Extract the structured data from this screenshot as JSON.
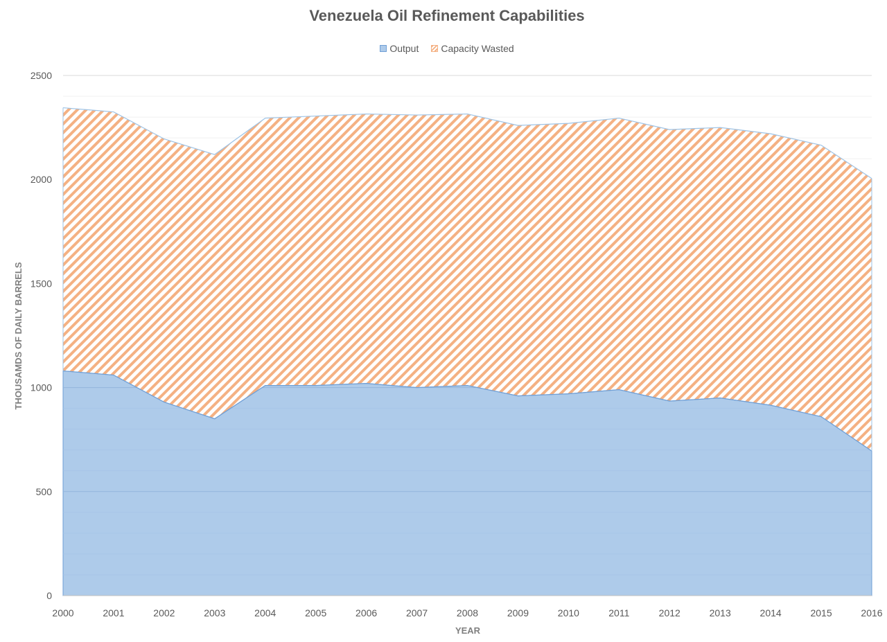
{
  "chart_data": {
    "type": "area",
    "stacked": true,
    "title": "Venezuela Oil Refinement Capabilities",
    "xlabel": "YEAR",
    "ylabel": "THOUSAMDS OF DAILY BARRELS",
    "ylim": [
      0,
      2500
    ],
    "yticks": [
      0,
      500,
      1000,
      1500,
      2000,
      2500
    ],
    "grid": true,
    "legend_position": "top",
    "x": [
      "2000",
      "2001",
      "2002",
      "2003",
      "2004",
      "2005",
      "2006",
      "2007",
      "2008",
      "2009",
      "2010",
      "2011",
      "2012",
      "2013",
      "2014",
      "2015",
      "2016"
    ],
    "series": [
      {
        "name": "Output",
        "values": [
          1080,
          1060,
          930,
          850,
          1010,
          1010,
          1020,
          1000,
          1010,
          960,
          970,
          990,
          935,
          950,
          915,
          860,
          695
        ],
        "color": "#aecbea",
        "line_color": "#6f9fd6",
        "fill": "solid"
      },
      {
        "name": "Capacity Wasted",
        "values": [
          1265,
          1265,
          1265,
          1270,
          1285,
          1295,
          1295,
          1310,
          1305,
          1300,
          1300,
          1305,
          1305,
          1300,
          1305,
          1305,
          1310
        ],
        "color": "#f4b183",
        "line_color": "#9dc3e6",
        "fill": "hatched"
      }
    ]
  }
}
